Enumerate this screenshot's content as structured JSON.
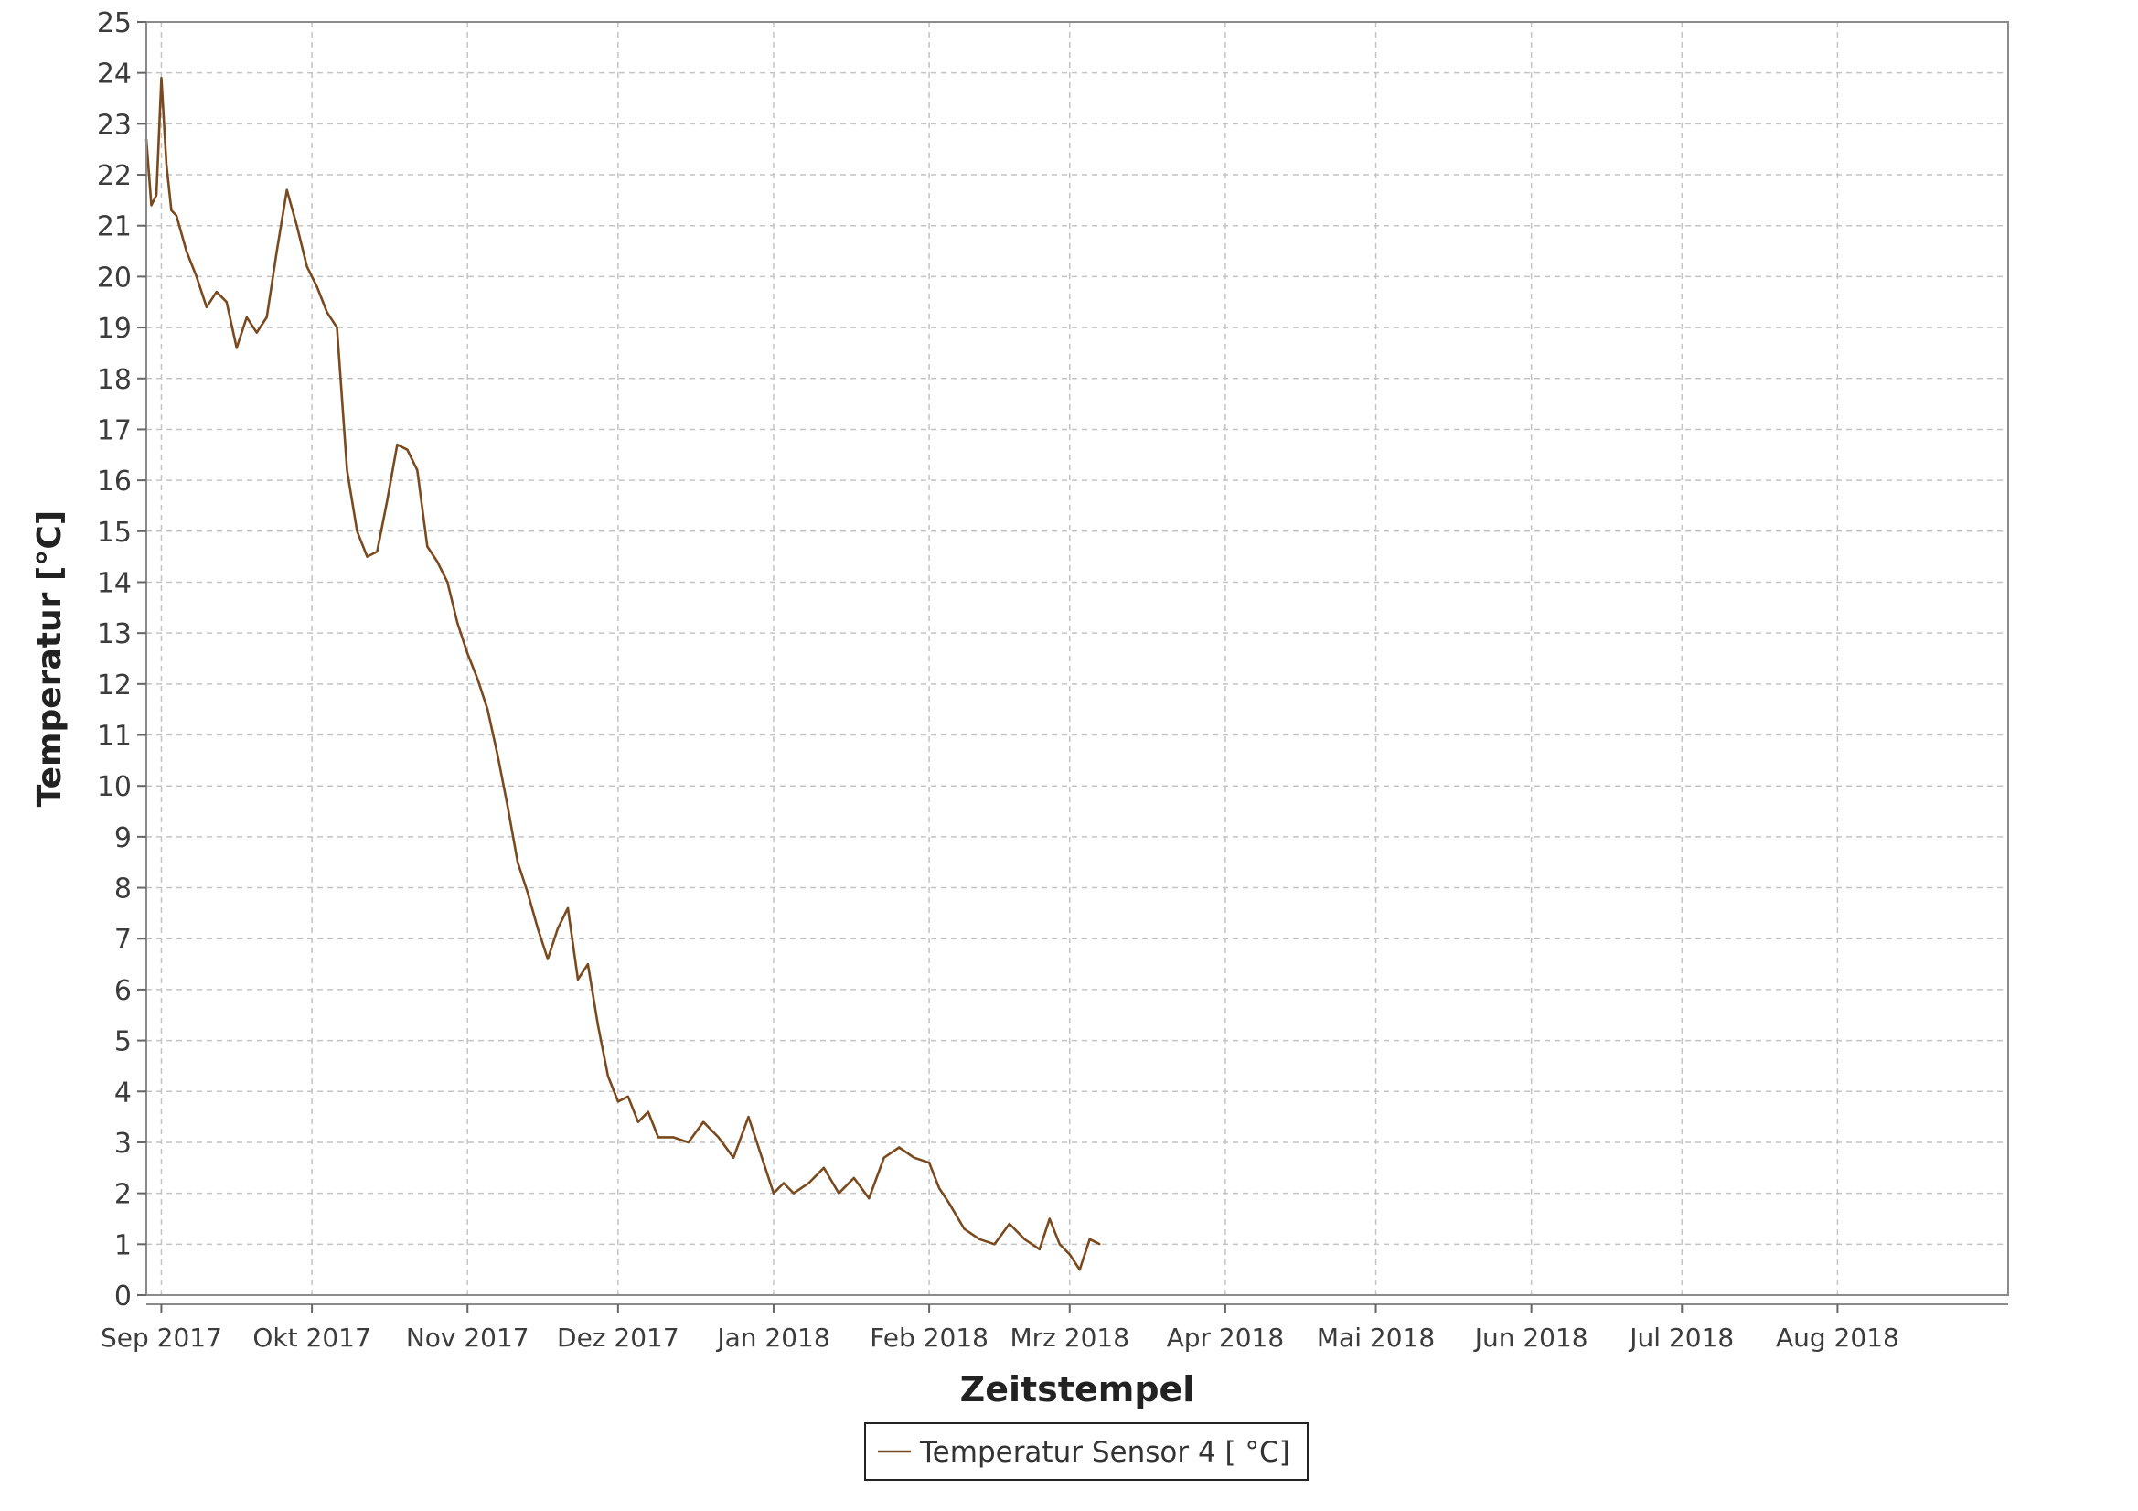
{
  "chart_data": {
    "type": "line",
    "title": "",
    "xlabel": "Zeitstempel",
    "ylabel": "Temperatur [°C]",
    "ylim": [
      0,
      25
    ],
    "xlim": [
      "2017-08-29",
      "2018-09-04"
    ],
    "grid": true,
    "legend_position": "bottom-center",
    "y_ticks": [
      "0",
      "1",
      "2",
      "3",
      "4",
      "5",
      "6",
      "7",
      "8",
      "9",
      "10",
      "11",
      "12",
      "13",
      "14",
      "15",
      "16",
      "17",
      "18",
      "19",
      "20",
      "21",
      "22",
      "23",
      "24",
      "25"
    ],
    "x_ticks": [
      {
        "label": "Sep 2017",
        "date": "2017-09-01"
      },
      {
        "label": "Okt 2017",
        "date": "2017-10-01"
      },
      {
        "label": "Nov 2017",
        "date": "2017-11-01"
      },
      {
        "label": "Dez 2017",
        "date": "2017-12-01"
      },
      {
        "label": "Jan 2018",
        "date": "2018-01-01"
      },
      {
        "label": "Feb 2018",
        "date": "2018-02-01"
      },
      {
        "label": "Mrz 2018",
        "date": "2018-03-01"
      },
      {
        "label": "Apr 2018",
        "date": "2018-04-01"
      },
      {
        "label": "Mai 2018",
        "date": "2018-05-01"
      },
      {
        "label": "Jun 2018",
        "date": "2018-06-01"
      },
      {
        "label": "Jul 2018",
        "date": "2018-07-01"
      },
      {
        "label": "Aug 2018",
        "date": "2018-08-01"
      }
    ],
    "series": [
      {
        "name": "Temperatur Sensor 4 [ °C]",
        "color": "#7a4a1e",
        "x": [
          "2017-08-29",
          "2017-08-30",
          "2017-08-31",
          "2017-09-01",
          "2017-09-02",
          "2017-09-03",
          "2017-09-04",
          "2017-09-06",
          "2017-09-08",
          "2017-09-10",
          "2017-09-12",
          "2017-09-14",
          "2017-09-16",
          "2017-09-18",
          "2017-09-20",
          "2017-09-22",
          "2017-09-24",
          "2017-09-26",
          "2017-09-28",
          "2017-09-30",
          "2017-10-02",
          "2017-10-04",
          "2017-10-06",
          "2017-10-08",
          "2017-10-10",
          "2017-10-12",
          "2017-10-14",
          "2017-10-16",
          "2017-10-18",
          "2017-10-20",
          "2017-10-22",
          "2017-10-24",
          "2017-10-26",
          "2017-10-28",
          "2017-10-30",
          "2017-11-01",
          "2017-11-03",
          "2017-11-05",
          "2017-11-07",
          "2017-11-09",
          "2017-11-11",
          "2017-11-13",
          "2017-11-15",
          "2017-11-17",
          "2017-11-19",
          "2017-11-21",
          "2017-11-23",
          "2017-11-25",
          "2017-11-27",
          "2017-11-29",
          "2017-12-01",
          "2017-12-03",
          "2017-12-05",
          "2017-12-07",
          "2017-12-09",
          "2017-12-12",
          "2017-12-15",
          "2017-12-18",
          "2017-12-21",
          "2017-12-24",
          "2017-12-27",
          "2017-12-30",
          "2018-01-01",
          "2018-01-03",
          "2018-01-05",
          "2018-01-08",
          "2018-01-11",
          "2018-01-14",
          "2018-01-17",
          "2018-01-20",
          "2018-01-23",
          "2018-01-26",
          "2018-01-29",
          "2018-02-01",
          "2018-02-03",
          "2018-02-05",
          "2018-02-08",
          "2018-02-11",
          "2018-02-14",
          "2018-02-17",
          "2018-02-20",
          "2018-02-23",
          "2018-02-25",
          "2018-02-27",
          "2018-03-01",
          "2018-03-03",
          "2018-03-05",
          "2018-03-07"
        ],
        "y": [
          22.7,
          21.4,
          21.6,
          23.9,
          22.2,
          21.3,
          21.2,
          20.5,
          20.0,
          19.4,
          19.7,
          19.5,
          18.6,
          19.2,
          18.9,
          19.2,
          20.5,
          21.7,
          21.0,
          20.2,
          19.8,
          19.3,
          19.0,
          16.2,
          15.0,
          14.5,
          14.6,
          15.6,
          16.7,
          16.6,
          16.2,
          14.7,
          14.4,
          14.0,
          13.2,
          12.6,
          12.1,
          11.5,
          10.6,
          9.6,
          8.5,
          7.9,
          7.2,
          6.6,
          7.2,
          7.6,
          6.2,
          6.5,
          5.3,
          4.3,
          3.8,
          3.9,
          3.4,
          3.6,
          3.1,
          3.1,
          3.0,
          3.4,
          3.1,
          2.7,
          3.5,
          2.6,
          2.0,
          2.2,
          2.0,
          2.2,
          2.5,
          2.0,
          2.3,
          1.9,
          2.7,
          2.9,
          2.7,
          2.6,
          2.1,
          1.8,
          1.3,
          1.1,
          1.0,
          1.4,
          1.1,
          0.9,
          1.5,
          1.0,
          0.8,
          0.5,
          1.1,
          1.0
        ]
      }
    ]
  }
}
